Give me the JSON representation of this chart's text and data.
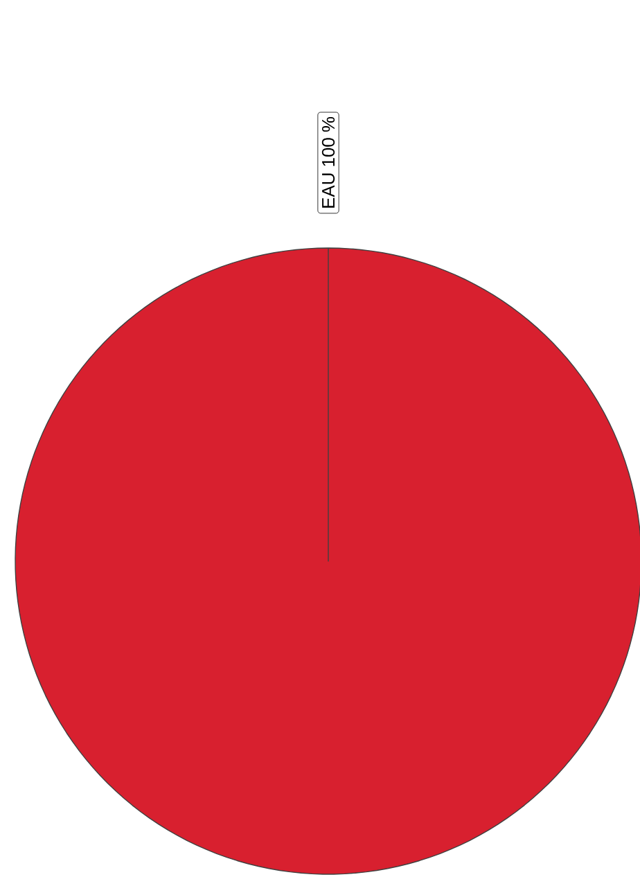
{
  "chart_data": {
    "type": "pie",
    "categories": [
      "EAU"
    ],
    "values": [
      100
    ],
    "colors": [
      "#d8202f"
    ],
    "value_labels": [
      "100 %"
    ]
  }
}
